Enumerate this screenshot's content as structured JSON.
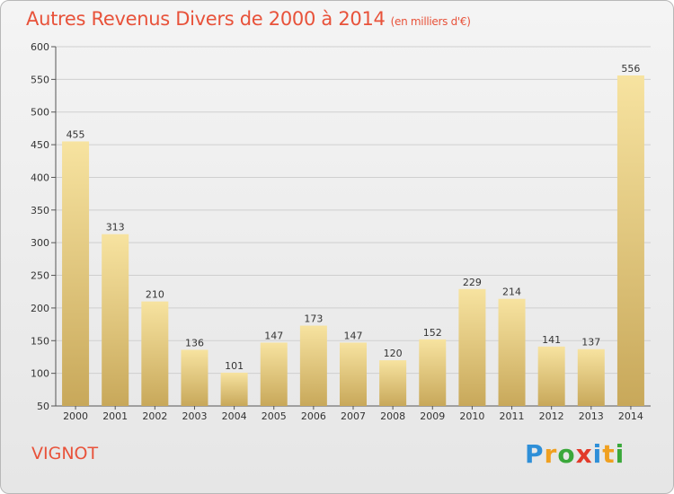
{
  "header": {
    "title": "Autres Revenus Divers de 2000 à 2014",
    "unit": "(en milliers d'€)"
  },
  "footer": {
    "commune": "VIGNOT",
    "logo_letters": [
      "P",
      "r",
      "o",
      "x",
      "i",
      "t",
      "i"
    ],
    "logo_colors": [
      "#2e8fd8",
      "#f0a020",
      "#3aa83a",
      "#e23a2a",
      "#2e8fd8",
      "#f0a020",
      "#3aa83a"
    ]
  },
  "colors": {
    "title": "#e8523a",
    "bar_light": "#f7e3a0",
    "bar_dark": "#c8a85a",
    "grid": "#cfcfcf"
  },
  "chart_data": {
    "type": "bar",
    "title": "Autres Revenus Divers de 2000 à 2014",
    "subtitle": "(en milliers d'€)",
    "categories": [
      "2000",
      "2001",
      "2002",
      "2003",
      "2004",
      "2005",
      "2006",
      "2007",
      "2008",
      "2009",
      "2010",
      "2011",
      "2012",
      "2013",
      "2014"
    ],
    "values": [
      455,
      313,
      210,
      136,
      101,
      147,
      173,
      147,
      120,
      152,
      229,
      214,
      141,
      137,
      556
    ],
    "ylim": [
      50,
      600
    ],
    "yticks": [
      50,
      100,
      150,
      200,
      250,
      300,
      350,
      400,
      450,
      500,
      550,
      600
    ],
    "grid": true,
    "xlabel": "",
    "ylabel": ""
  }
}
